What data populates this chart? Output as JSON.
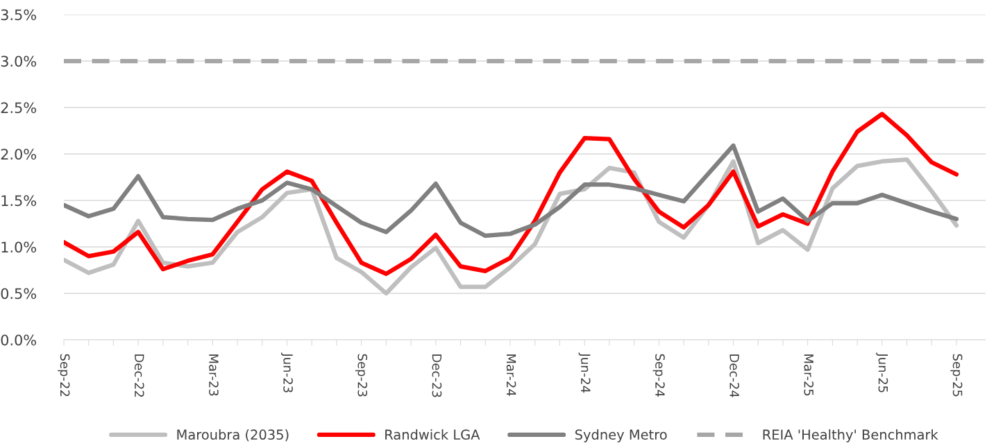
{
  "chart_data": {
    "type": "line",
    "categories": [
      "Sep-22",
      null,
      null,
      "Dec-22",
      null,
      null,
      "Mar-23",
      null,
      null,
      "Jun-23",
      null,
      null,
      "Sep-23",
      null,
      null,
      "Dec-23",
      null,
      null,
      "Mar-24",
      null,
      null,
      "Jun-24",
      null,
      null,
      "Sep-24",
      null,
      null,
      "Dec-24",
      null,
      null,
      "Mar-25",
      null,
      null,
      "Jun-25",
      null,
      null,
      "Sep-25"
    ],
    "series": [
      {
        "name": "Maroubra (2035)",
        "color": "#bfbfbf",
        "values": [
          0.86,
          0.72,
          0.81,
          1.28,
          0.83,
          0.79,
          0.83,
          1.16,
          1.32,
          1.58,
          1.62,
          0.88,
          0.73,
          0.5,
          0.78,
          0.99,
          0.57,
          0.57,
          0.78,
          1.03,
          1.57,
          1.62,
          1.85,
          1.8,
          1.27,
          1.1,
          1.45,
          1.92,
          1.04,
          1.18,
          0.97,
          1.63,
          1.87,
          1.92,
          1.94,
          1.6,
          1.23
        ]
      },
      {
        "name": "Randwick LGA",
        "color": "#ff0000",
        "values": [
          1.05,
          0.9,
          0.95,
          1.16,
          0.76,
          0.85,
          0.92,
          1.27,
          1.62,
          1.81,
          1.71,
          1.26,
          0.83,
          0.71,
          0.87,
          1.13,
          0.79,
          0.74,
          0.88,
          1.28,
          1.8,
          2.17,
          2.16,
          1.73,
          1.38,
          1.21,
          1.45,
          1.81,
          1.22,
          1.35,
          1.25,
          1.81,
          2.24,
          2.43,
          2.2,
          1.91,
          1.78
        ]
      },
      {
        "name": "Sydney Metro",
        "color": "#808080",
        "values": [
          1.45,
          1.33,
          1.41,
          1.76,
          1.32,
          1.3,
          1.29,
          1.41,
          1.5,
          1.69,
          1.62,
          1.44,
          1.26,
          1.16,
          1.39,
          1.68,
          1.26,
          1.12,
          1.14,
          1.24,
          1.43,
          1.67,
          1.67,
          1.63,
          1.56,
          1.49,
          1.79,
          2.09,
          1.38,
          1.52,
          1.28,
          1.47,
          1.47,
          1.56,
          1.47,
          1.38,
          1.3
        ]
      }
    ],
    "ref_lines": [
      {
        "axis": "y",
        "value": 3.0,
        "label": "REIA 'Healthy' Benchmark",
        "color": "#a6a6a6",
        "line_style": "dashed"
      }
    ],
    "ylim": [
      0,
      3.5
    ],
    "yticks": [
      {
        "value": 0,
        "label": "0.0%"
      },
      {
        "value": 0.5,
        "label": "0.5%"
      },
      {
        "value": 1.0,
        "label": "1.0%"
      },
      {
        "value": 1.5,
        "label": "1.5%"
      },
      {
        "value": 2.0,
        "label": "2.0%"
      },
      {
        "value": 2.5,
        "label": "2.5%"
      },
      {
        "value": 3.0,
        "label": "3.0%"
      },
      {
        "value": 3.5,
        "label": "3.5%"
      }
    ],
    "grid": "y",
    "legend": "bottom",
    "line_style": "solid"
  }
}
